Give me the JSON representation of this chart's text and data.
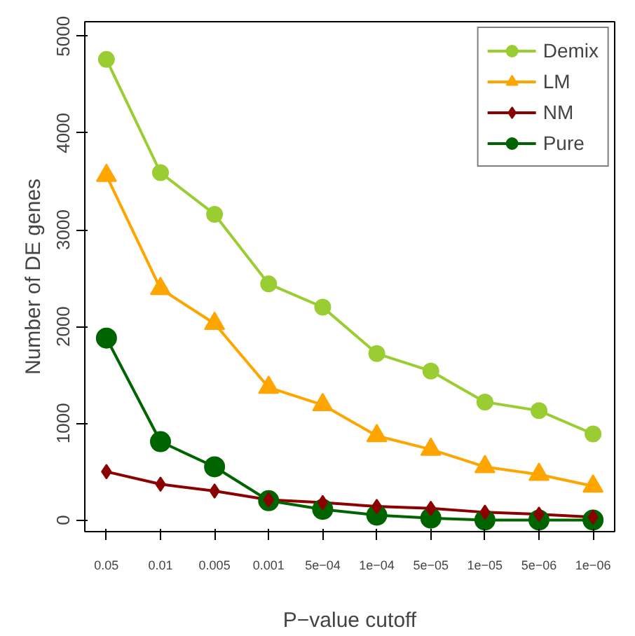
{
  "chart_data": {
    "type": "line",
    "xlabel": "P−value cutoff",
    "ylabel": "Number of DE genes",
    "categories": [
      "0.05",
      "0.01",
      "0.005",
      "0.001",
      "5e−04",
      "1e−04",
      "5e−05",
      "1e−05",
      "5e−06",
      "1e−06"
    ],
    "ylim": [
      -120,
      5150
    ],
    "yticks": [
      0,
      1000,
      2000,
      3000,
      4000,
      5000
    ],
    "grid": false,
    "legend": "top right",
    "line_style": "solid",
    "series": [
      {
        "name": "Demix",
        "color": "#9acd32",
        "marker": "circle",
        "values": [
          4760,
          3590,
          3160,
          2440,
          2200,
          1720,
          1540,
          1220,
          1130,
          890
        ]
      },
      {
        "name": "LM",
        "color": "#ffa500",
        "marker": "triangle",
        "values": [
          3560,
          2390,
          2030,
          1370,
          1190,
          870,
          730,
          550,
          470,
          350
        ]
      },
      {
        "name": "NM",
        "color": "#8b0000",
        "marker": "diamond",
        "values": [
          500,
          370,
          300,
          210,
          180,
          140,
          120,
          80,
          60,
          30
        ]
      },
      {
        "name": "Pure",
        "color": "#006400",
        "marker": "circle",
        "values": [
          1880,
          810,
          550,
          200,
          110,
          50,
          20,
          0,
          0,
          0
        ]
      }
    ]
  }
}
